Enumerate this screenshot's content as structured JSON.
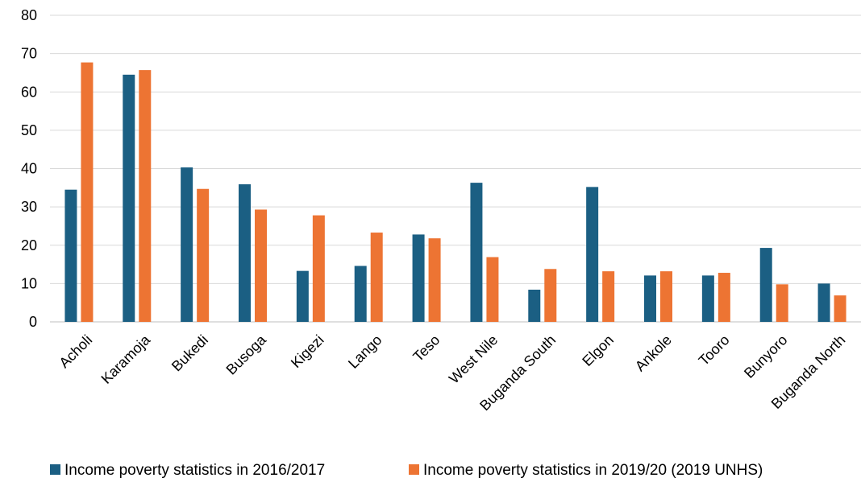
{
  "chart_data": {
    "type": "bar",
    "title": "",
    "xlabel": "",
    "ylabel": "",
    "ylim": [
      0,
      80
    ],
    "yticks": [
      0,
      10,
      20,
      30,
      40,
      50,
      60,
      70,
      80
    ],
    "grid": true,
    "legend_position": "bottom",
    "categories": [
      "Acholi",
      "Karamoja",
      "Bukedi",
      "Busoga",
      "Kigezi",
      "Lango",
      "Teso",
      "West Nile",
      "Buganda South",
      "Elgon",
      "Ankole",
      "Tooro",
      "Bunyoro",
      "Buganda North"
    ],
    "series": [
      {
        "name": "Income poverty statistics in 2016/2017",
        "color": "#1b5f83",
        "values": [
          34.5,
          64.5,
          40.3,
          35.9,
          13.3,
          14.6,
          22.8,
          36.3,
          8.4,
          35.2,
          12.1,
          12.1,
          19.3,
          10.0
        ]
      },
      {
        "name": "Income poverty statistics in 2019/20 (2019 UNHS)",
        "color": "#ed7433",
        "values": [
          67.7,
          65.7,
          34.7,
          29.3,
          27.8,
          23.3,
          21.8,
          16.9,
          13.8,
          13.2,
          13.2,
          12.8,
          9.8,
          6.9
        ]
      }
    ]
  }
}
